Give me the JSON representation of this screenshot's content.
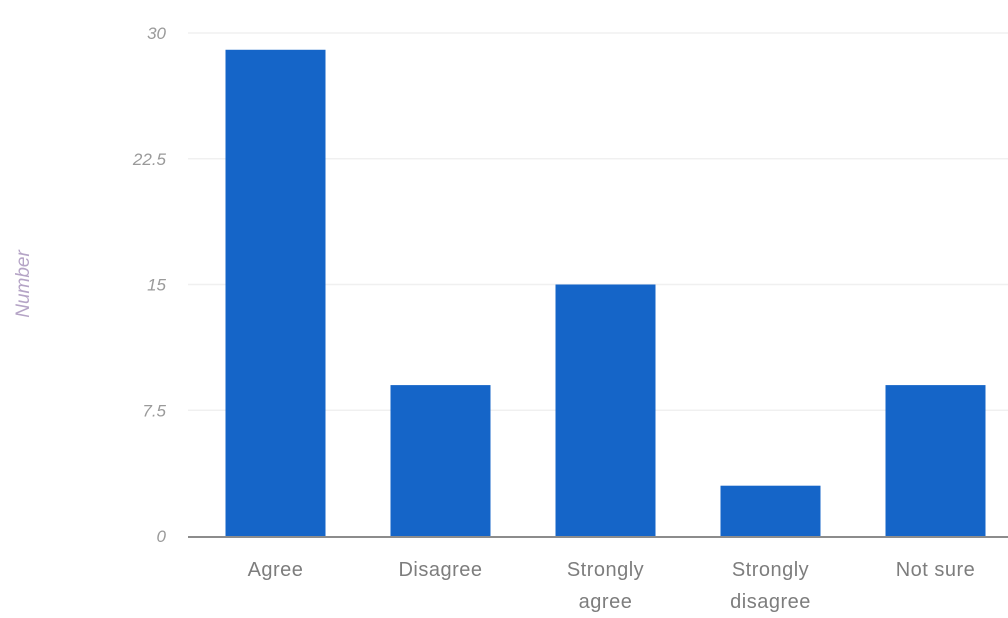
{
  "chart_data": {
    "type": "bar",
    "categories": [
      [
        "Agree"
      ],
      [
        "Disagree"
      ],
      [
        "Strongly",
        "agree"
      ],
      [
        "Strongly",
        "disagree"
      ],
      [
        "Not sure"
      ]
    ],
    "values": [
      29,
      9,
      15,
      3,
      9
    ],
    "ylabel": "Number",
    "xlabel": "",
    "ylim": [
      0,
      30
    ],
    "yticks": [
      "0",
      "7.5",
      "15",
      "22.5",
      "30"
    ],
    "ytick_values": [
      0,
      7.5,
      15,
      22.5,
      30
    ],
    "bar_color": "#1565c8",
    "grid": true,
    "grid_color": "#f0f0f0",
    "axis_color": "#666666"
  }
}
